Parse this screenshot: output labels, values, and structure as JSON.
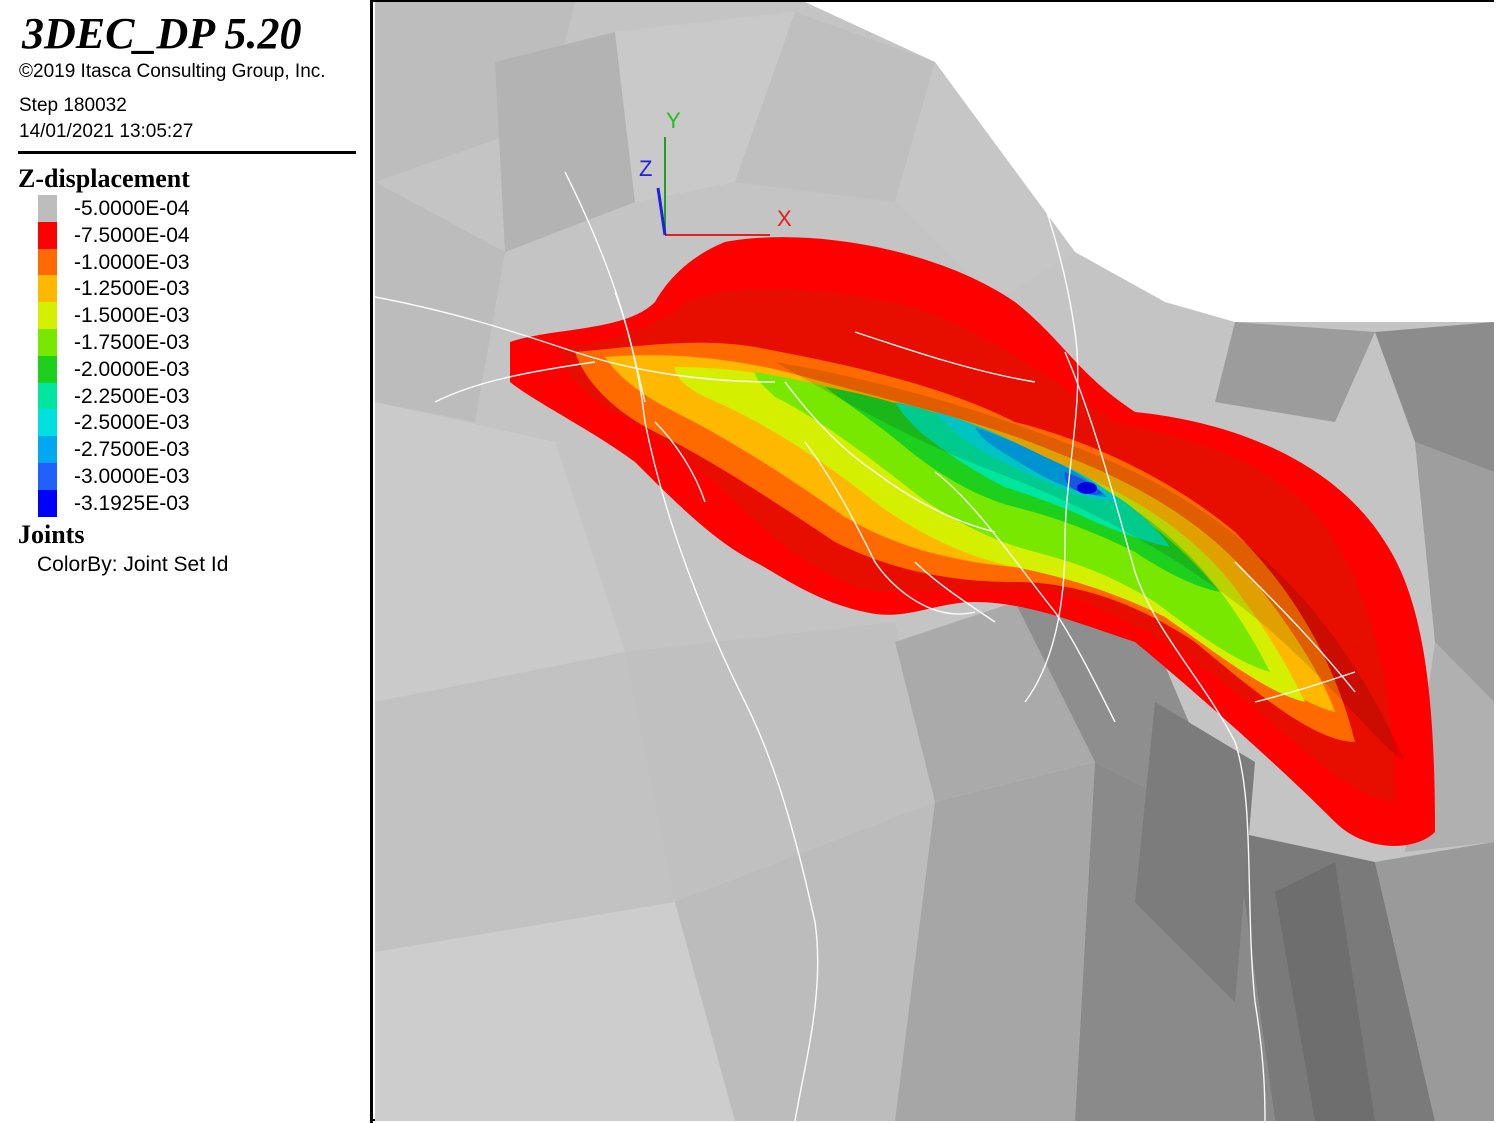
{
  "legend": {
    "app_title": "3DEC_DP 5.20",
    "copyright": "©2019 Itasca Consulting Group, Inc.",
    "step": "Step 180032",
    "timestamp": "14/01/2021 13:05:27",
    "contour_title": "Z-displacement",
    "levels": [
      {
        "label": "-5.0000E-04",
        "color": "#bdbdbd"
      },
      {
        "label": "-7.5000E-04",
        "color": "#ff0000"
      },
      {
        "label": "-1.0000E-03",
        "color": "#ff6a00"
      },
      {
        "label": "-1.2500E-03",
        "color": "#ffb800"
      },
      {
        "label": "-1.5000E-03",
        "color": "#d4f000"
      },
      {
        "label": "-1.7500E-03",
        "color": "#78e800"
      },
      {
        "label": "-2.0000E-03",
        "color": "#1ed01e"
      },
      {
        "label": "-2.2500E-03",
        "color": "#00e6a0"
      },
      {
        "label": "-2.5000E-03",
        "color": "#00e0e0"
      },
      {
        "label": "-2.7500E-03",
        "color": "#00a8f0"
      },
      {
        "label": "-3.0000E-03",
        "color": "#2060ff"
      },
      {
        "label": "-3.1925E-03",
        "color": "#0000ff"
      }
    ],
    "joints_title": "Joints",
    "joints_colorby": "ColorBy: Joint Set Id"
  },
  "axes": {
    "x_label": "X",
    "y_label": "Y",
    "z_label": "Z",
    "x_color": "#e02020",
    "y_color": "#20c020",
    "z_color": "#2020e0"
  }
}
